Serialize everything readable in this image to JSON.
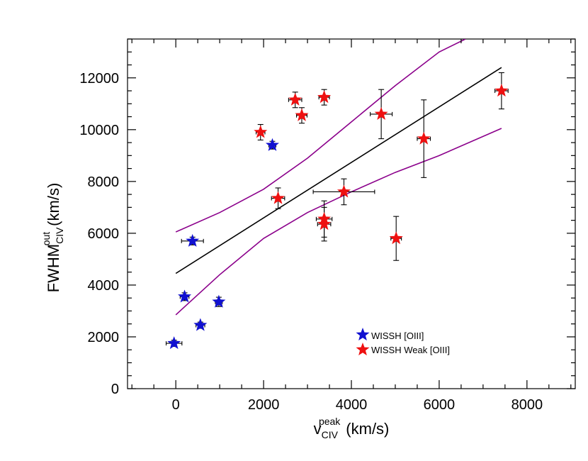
{
  "chart_data": {
    "type": "scatter",
    "xlabel": {
      "main": "v",
      "sup": "peak",
      "sub": "CIV",
      "unit": "(km/s)"
    },
    "ylabel": {
      "main": "FWHM",
      "sup": "out",
      "sub": "CIV",
      "unit": "(km/s)"
    },
    "xlim": [
      -1100,
      9100
    ],
    "ylim": [
      0,
      13500
    ],
    "xticks": [
      0,
      2000,
      4000,
      6000,
      8000
    ],
    "yticks": [
      0,
      2000,
      4000,
      6000,
      8000,
      10000,
      12000
    ],
    "xtick_labels": [
      "0",
      "2000",
      "4000",
      "6000",
      "8000"
    ],
    "ytick_labels": [
      "0",
      "2000",
      "4000",
      "6000",
      "8000",
      "10000",
      "12000"
    ],
    "x_minor_step": 500,
    "y_minor_step": 500,
    "series": [
      {
        "name": "WISSH [OIII]",
        "color": "#1010d0",
        "marker": "star",
        "points": [
          {
            "x": -40,
            "y": 1750,
            "xerr": 180,
            "yerr": 120
          },
          {
            "x": 380,
            "y": 5700,
            "xerr": 250,
            "yerr": 150
          },
          {
            "x": 200,
            "y": 3550,
            "xerr": 100,
            "yerr": 150
          },
          {
            "x": 560,
            "y": 2450,
            "xerr": 100,
            "yerr": 120
          },
          {
            "x": 980,
            "y": 3350,
            "xerr": 80,
            "yerr": 180
          },
          {
            "x": 2200,
            "y": 9400,
            "xerr": 80,
            "yerr": 150
          }
        ]
      },
      {
        "name": "WISSH Weak [OIII]",
        "color": "#ee1111",
        "marker": "star",
        "points": [
          {
            "x": 1930,
            "y": 9900,
            "xerr": 100,
            "yerr": 300
          },
          {
            "x": 2330,
            "y": 7350,
            "xerr": 150,
            "yerr": 400
          },
          {
            "x": 2720,
            "y": 11150,
            "xerr": 150,
            "yerr": 300
          },
          {
            "x": 2870,
            "y": 10550,
            "xerr": 120,
            "yerr": 300
          },
          {
            "x": 3380,
            "y": 11250,
            "xerr": 120,
            "yerr": 300
          },
          {
            "x": 3380,
            "y": 6550,
            "xerr": 180,
            "yerr": 700
          },
          {
            "x": 3380,
            "y": 6350,
            "xerr": 150,
            "yerr": 650
          },
          {
            "x": 3830,
            "y": 7600,
            "xerr": 700,
            "yerr": 500
          },
          {
            "x": 4680,
            "y": 10600,
            "xerr": 250,
            "yerr": 950
          },
          {
            "x": 5020,
            "y": 5800,
            "xerr": 120,
            "yerr": 850
          },
          {
            "x": 5650,
            "y": 9650,
            "xerr": 150,
            "yerr": 1500
          },
          {
            "x": 7420,
            "y": 11500,
            "xerr": 150,
            "yerr": 700
          }
        ]
      }
    ],
    "fit_line": {
      "color": "#000000",
      "x": [
        0,
        7420
      ],
      "y": [
        4450,
        12400
      ]
    },
    "band_upper": {
      "color": "#8b008b",
      "x": [
        0,
        1000,
        2000,
        3000,
        4000,
        5000,
        6000,
        6600
      ],
      "y": [
        6050,
        6800,
        7700,
        8900,
        10300,
        11700,
        13000,
        13500
      ]
    },
    "band_lower": {
      "color": "#8b008b",
      "x": [
        0,
        1000,
        2000,
        3000,
        4000,
        5000,
        6000,
        7420
      ],
      "y": [
        2850,
        4400,
        5800,
        6800,
        7600,
        8350,
        9000,
        10050
      ]
    },
    "legend": {
      "location": "lower-center"
    }
  }
}
